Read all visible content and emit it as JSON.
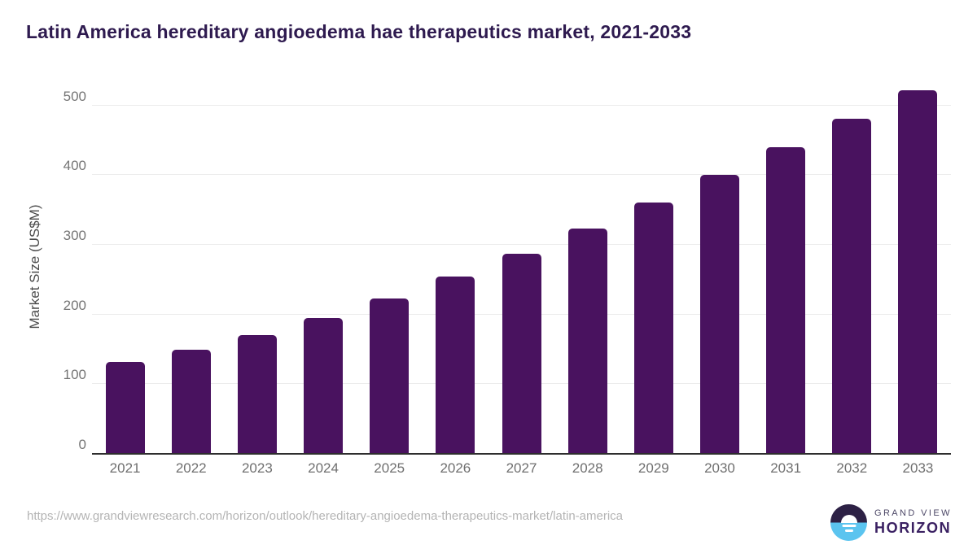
{
  "title": "Latin America hereditary angioedema hae therapeutics market, 2021-2033",
  "chart_data": {
    "type": "bar",
    "title": "Latin America hereditary angioedema hae therapeutics market, 2021-2033",
    "categories": [
      "2021",
      "2022",
      "2023",
      "2024",
      "2025",
      "2026",
      "2027",
      "2028",
      "2029",
      "2030",
      "2031",
      "2032",
      "2033"
    ],
    "values": [
      132,
      150,
      170,
      195,
      223,
      254,
      287,
      323,
      361,
      400,
      440,
      481,
      522
    ],
    "xlabel": "",
    "ylabel": "Market Size (US$M)",
    "ylim": [
      0,
      530
    ],
    "yticks": [
      0,
      100,
      200,
      300,
      400,
      500
    ],
    "grid": true,
    "legend_position": "none",
    "bar_color": "#49125f"
  },
  "footer": {
    "source_url": "https://www.grandviewresearch.com/horizon/outlook/hereditary-angioedema-therapeutics-market/latin-america",
    "logo": {
      "line1": "GRAND VIEW",
      "line2": "HORIZON"
    }
  },
  "colors": {
    "title_text": "#2e1a4f",
    "bar": "#49125f",
    "tick_label": "#757575",
    "gridline": "#ececec",
    "axis_line": "#2e2e2e",
    "url_text": "#b4b4b4",
    "logo_dark": "#2d2145",
    "logo_blue": "#5bc4ef"
  }
}
